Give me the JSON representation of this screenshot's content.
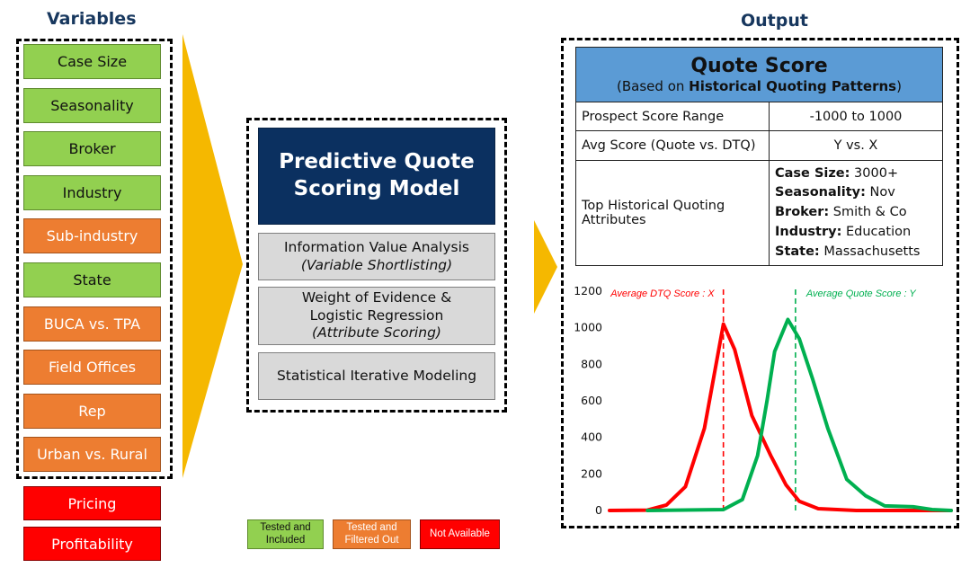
{
  "variables_heading": "Variables",
  "output_heading": "Output",
  "variables": [
    {
      "label": "Case Size",
      "status": "included"
    },
    {
      "label": "Seasonality",
      "status": "included"
    },
    {
      "label": "Broker",
      "status": "included"
    },
    {
      "label": "Industry",
      "status": "included"
    },
    {
      "label": "Sub-industry",
      "status": "filtered"
    },
    {
      "label": "State",
      "status": "included"
    },
    {
      "label": "BUCA vs. TPA",
      "status": "filtered"
    },
    {
      "label": "Field Offices",
      "status": "filtered"
    },
    {
      "label": "Rep",
      "status": "filtered"
    },
    {
      "label": "Urban vs. Rural",
      "status": "filtered"
    }
  ],
  "unavailable": [
    "Pricing",
    "Profitability"
  ],
  "model": {
    "title_line1": "Predictive Quote",
    "title_line2": "Scoring Model",
    "steps": [
      {
        "line1": "Information Value Analysis",
        "line2": "",
        "italic": "(Variable Shortlisting)"
      },
      {
        "line1": "Weight of Evidence  &",
        "line2": "Logistic Regression",
        "italic": "(Attribute Scoring)"
      },
      {
        "line1": "Statistical Iterative Modeling",
        "line2": "",
        "italic": ""
      }
    ]
  },
  "quote_score": {
    "title": "Quote Score",
    "subtitle_prefix": "(Based on ",
    "subtitle_bold": "Historical Quoting Patterns",
    "subtitle_suffix": ")",
    "rows": [
      {
        "label": "Prospect Score Range",
        "value": "-1000 to 1000"
      },
      {
        "label": "Avg Score (Quote vs. DTQ)",
        "value": "Y vs. X"
      }
    ],
    "attributes_label_line1": "Top Historical Quoting",
    "attributes_label_line2": "Attributes",
    "attributes": [
      {
        "key": "Case Size:",
        "value": " 3000+"
      },
      {
        "key": "Seasonality:",
        "value": " Nov"
      },
      {
        "key": "Broker:",
        "value": " Smith & Co"
      },
      {
        "key": "Industry:",
        "value": " Education"
      },
      {
        "key": "State:",
        "value": " Massachusetts"
      }
    ]
  },
  "legend": [
    {
      "line1": "Tested and",
      "line2": "Included",
      "color": "#92d050"
    },
    {
      "line1": "Tested and",
      "line2": "Filtered Out",
      "color": "#ed7d31"
    },
    {
      "line1": "Not Available",
      "line2": "",
      "color": "#ff0000"
    }
  ],
  "colors": {
    "included": "#92d050",
    "filtered": "#ed7d31",
    "unavailable": "#ff0000",
    "model": "#0b3060",
    "arrow": "#f5b800",
    "header": "#5b9bd5",
    "dtq_series": "#ff0000",
    "quote_series": "#00b050"
  },
  "chart_data": {
    "type": "line",
    "ylim": [
      0,
      1200
    ],
    "yticks": [
      "0",
      "200",
      "400",
      "600",
      "800",
      "1000",
      "1200"
    ],
    "series": [
      {
        "name": "DTQ",
        "color": "#ff0000",
        "points": [
          [
            0,
            0
          ],
          [
            2,
            2
          ],
          [
            3,
            30
          ],
          [
            4,
            130
          ],
          [
            5,
            450
          ],
          [
            6,
            1020
          ],
          [
            6.6,
            880
          ],
          [
            7.5,
            520
          ],
          [
            8.5,
            300
          ],
          [
            9.3,
            140
          ],
          [
            10,
            50
          ],
          [
            11,
            10
          ],
          [
            13,
            0
          ],
          [
            18,
            0
          ]
        ]
      },
      {
        "name": "Quote",
        "color": "#00b050",
        "points": [
          [
            2,
            0
          ],
          [
            6,
            5
          ],
          [
            7,
            60
          ],
          [
            7.8,
            300
          ],
          [
            8.3,
            600
          ],
          [
            8.7,
            870
          ],
          [
            9.4,
            1045
          ],
          [
            10,
            940
          ],
          [
            10.7,
            720
          ],
          [
            11.5,
            450
          ],
          [
            12.5,
            170
          ],
          [
            13.5,
            80
          ],
          [
            14.5,
            25
          ],
          [
            16,
            20
          ],
          [
            17,
            5
          ],
          [
            18,
            0
          ]
        ]
      }
    ],
    "vlines": [
      {
        "x": 6.0,
        "color": "#ff0000",
        "label": "Average DTQ Score : X"
      },
      {
        "x": 9.8,
        "color": "#00b050",
        "label": "Average Quote Score : Y"
      }
    ]
  }
}
